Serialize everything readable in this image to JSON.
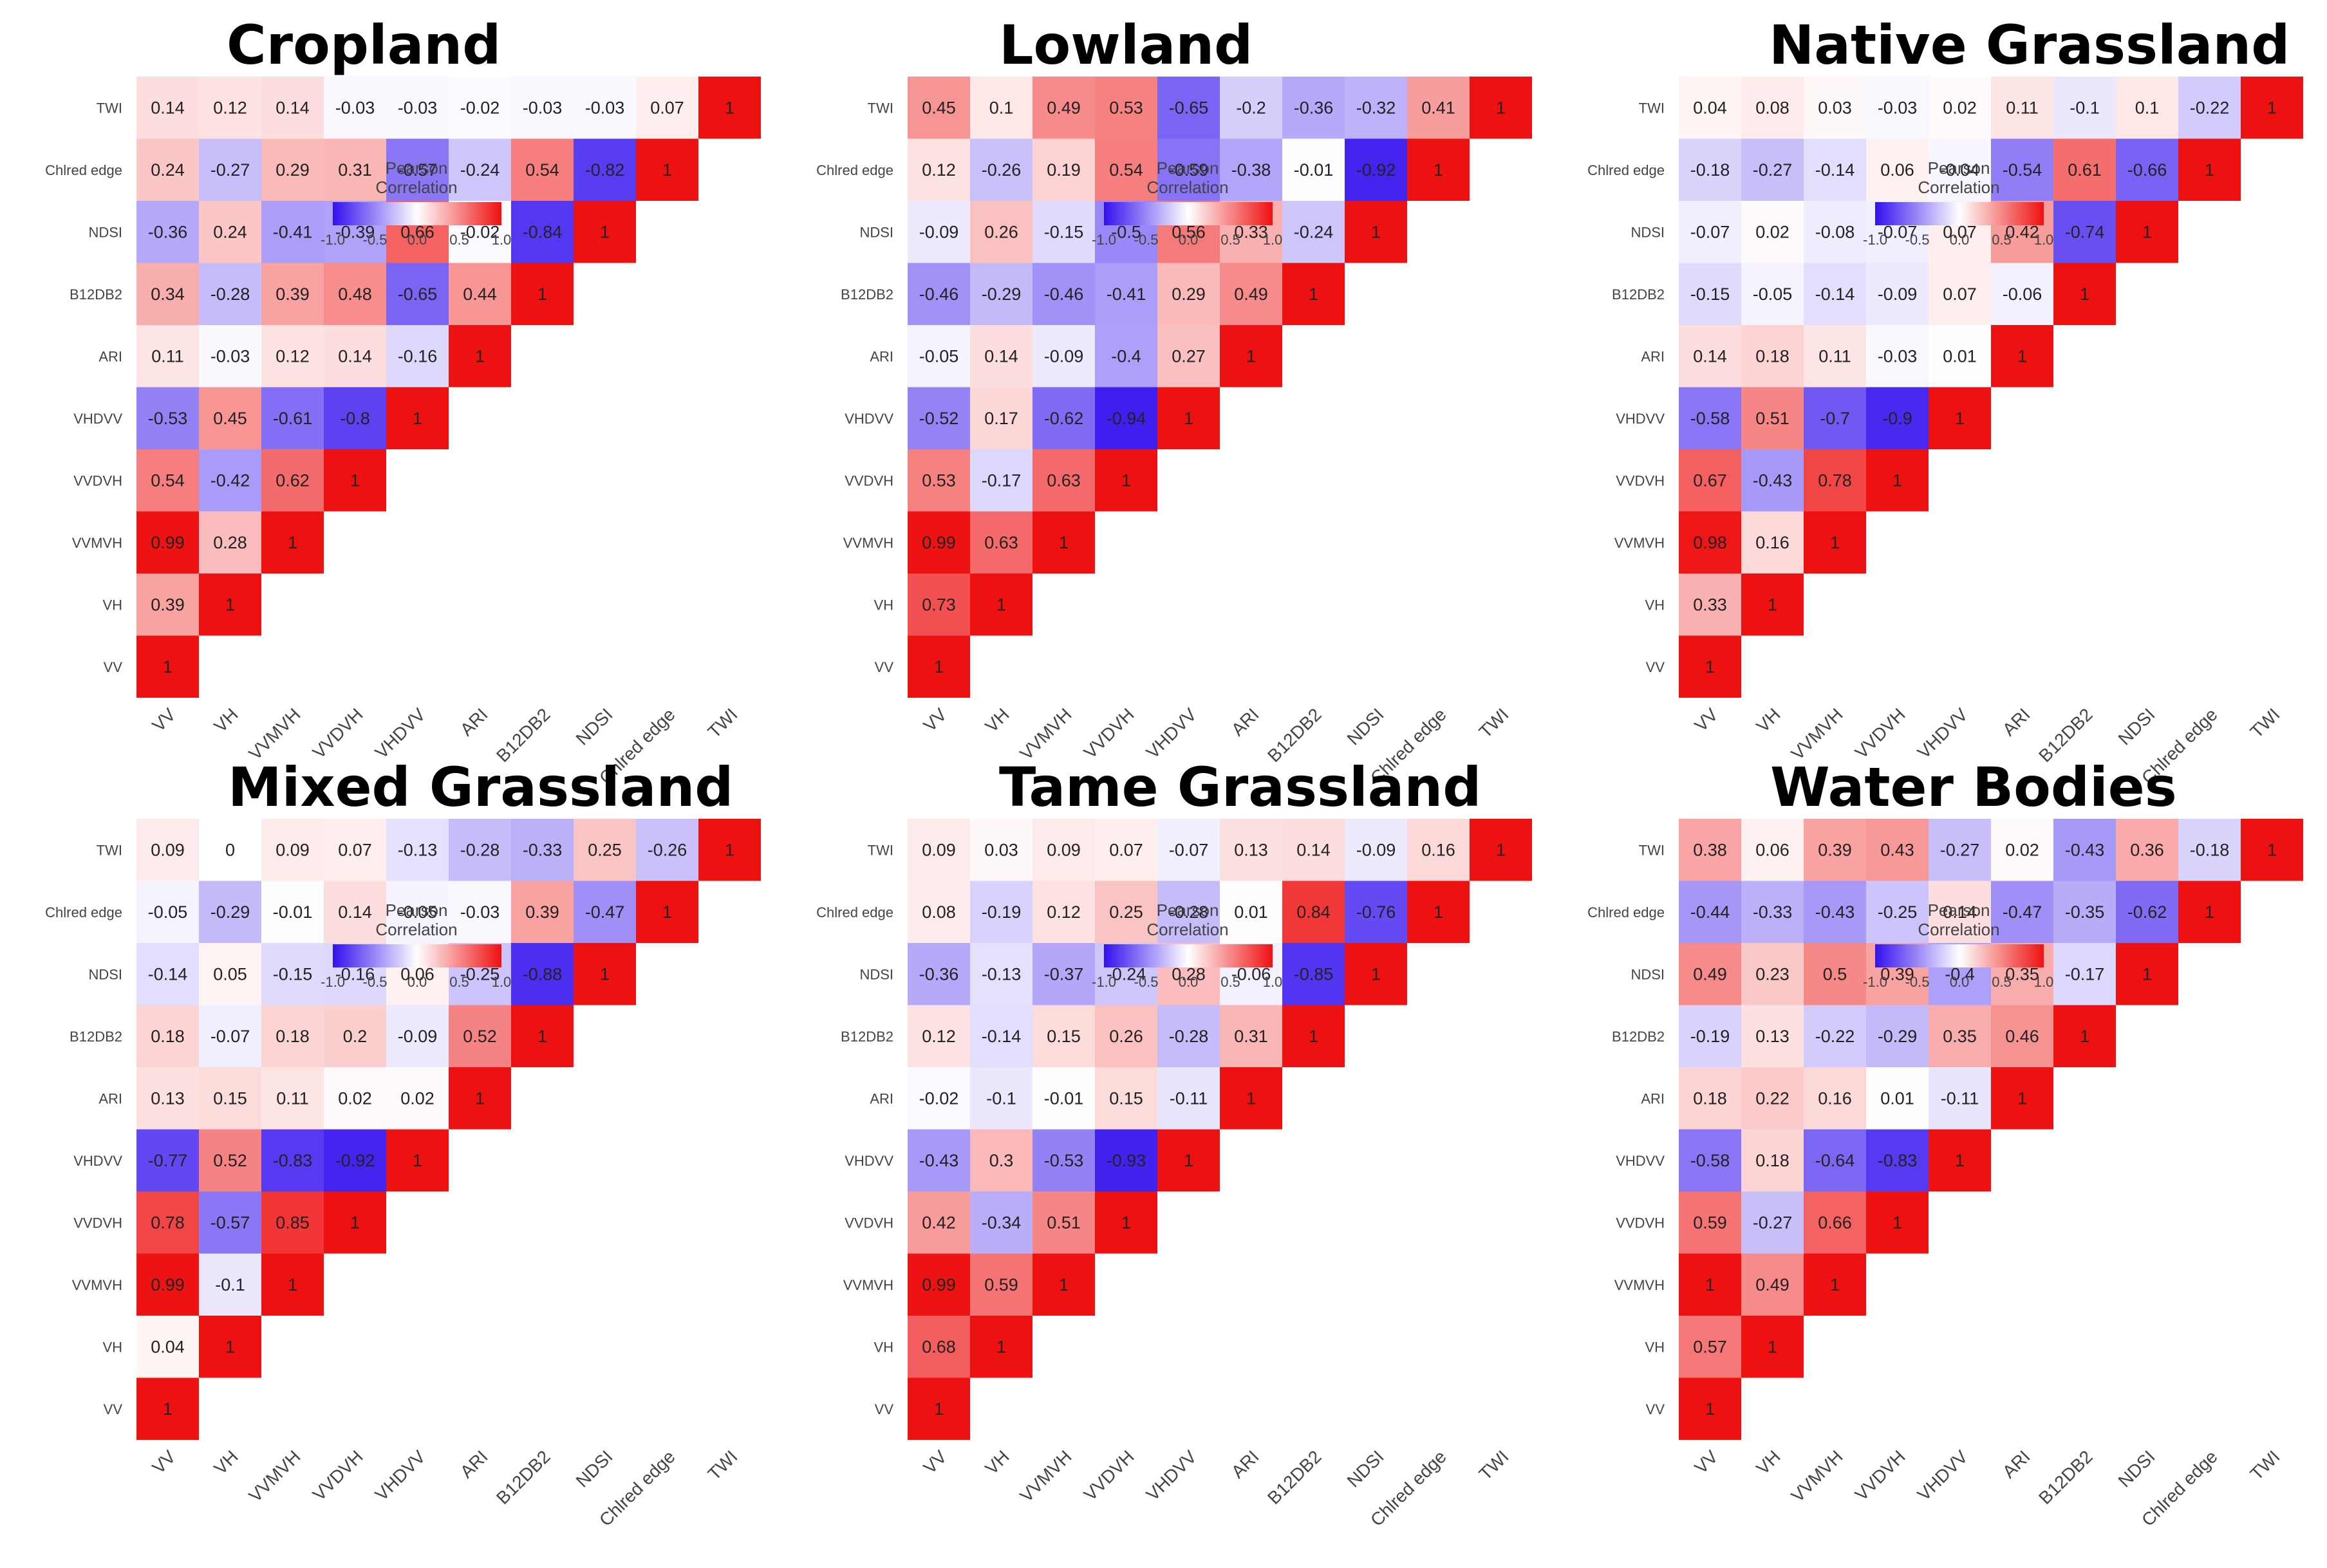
{
  "chart_data": [
    {
      "type": "heatmap",
      "title": "Cropland",
      "variables": [
        "VV",
        "VH",
        "VVMVH",
        "VVDVH",
        "VHDVV",
        "ARI",
        "B12DB2",
        "NDSI",
        "Chlred edge",
        "TWI"
      ],
      "values": [
        [
          1
        ],
        [
          0.39,
          1
        ],
        [
          0.99,
          0.28,
          1
        ],
        [
          0.54,
          -0.42,
          0.62,
          1
        ],
        [
          -0.53,
          0.45,
          -0.61,
          -0.8,
          1
        ],
        [
          0.11,
          -0.03,
          0.12,
          0.14,
          -0.16,
          1
        ],
        [
          0.34,
          -0.28,
          0.39,
          0.48,
          -0.65,
          0.44,
          1
        ],
        [
          -0.36,
          0.24,
          -0.41,
          -0.39,
          0.66,
          -0.02,
          -0.84,
          1
        ],
        [
          0.24,
          -0.27,
          0.29,
          0.31,
          -0.57,
          -0.24,
          0.54,
          -0.82,
          1
        ],
        [
          0.14,
          0.12,
          0.14,
          -0.03,
          -0.03,
          -0.02,
          -0.03,
          -0.03,
          0.07,
          1
        ]
      ],
      "legend_title": "Pearson Correlation",
      "legend_ticks": [
        "-1.0",
        "-0.5",
        "0.0",
        "0.5",
        "1.0"
      ],
      "range": [
        -1,
        1
      ]
    },
    {
      "type": "heatmap",
      "title": "Lowland",
      "variables": [
        "VV",
        "VH",
        "VVMVH",
        "VVDVH",
        "VHDVV",
        "ARI",
        "B12DB2",
        "NDSI",
        "Chlred edge",
        "TWI"
      ],
      "values": [
        [
          1
        ],
        [
          0.73,
          1
        ],
        [
          0.99,
          0.63,
          1
        ],
        [
          0.53,
          -0.17,
          0.63,
          1
        ],
        [
          -0.52,
          0.17,
          -0.62,
          -0.94,
          1
        ],
        [
          -0.05,
          0.14,
          -0.09,
          -0.4,
          0.27,
          1
        ],
        [
          -0.46,
          -0.29,
          -0.46,
          -0.41,
          0.29,
          0.49,
          1
        ],
        [
          -0.09,
          0.26,
          -0.15,
          -0.5,
          0.56,
          0.33,
          -0.24,
          1
        ],
        [
          0.12,
          -0.26,
          0.19,
          0.54,
          -0.59,
          -0.38,
          -0.01,
          -0.92,
          1
        ],
        [
          0.45,
          0.1,
          0.49,
          0.53,
          -0.65,
          -0.2,
          -0.36,
          -0.32,
          0.41,
          1
        ]
      ],
      "legend_title": "Pearson Correlation",
      "legend_ticks": [
        "-1.0",
        "-0.5",
        "0.0",
        "0.5",
        "1.0"
      ],
      "range": [
        -1,
        1
      ]
    },
    {
      "type": "heatmap",
      "title": "Native Grassland",
      "variables": [
        "VV",
        "VH",
        "VVMVH",
        "VVDVH",
        "VHDVV",
        "ARI",
        "B12DB2",
        "NDSI",
        "Chlred edge",
        "TWI"
      ],
      "values": [
        [
          1
        ],
        [
          0.33,
          1
        ],
        [
          0.98,
          0.16,
          1
        ],
        [
          0.67,
          -0.43,
          0.78,
          1
        ],
        [
          -0.58,
          0.51,
          -0.7,
          -0.9,
          1
        ],
        [
          0.14,
          0.18,
          0.11,
          -0.03,
          0.01,
          1
        ],
        [
          -0.15,
          -0.05,
          -0.14,
          -0.09,
          0.07,
          -0.06,
          1
        ],
        [
          -0.07,
          0.02,
          -0.08,
          -0.07,
          0.07,
          0.42,
          -0.74,
          1
        ],
        [
          -0.18,
          -0.27,
          -0.14,
          0.06,
          -0.04,
          -0.54,
          0.61,
          -0.66,
          1
        ],
        [
          0.04,
          0.08,
          0.03,
          -0.03,
          0.02,
          0.11,
          -0.1,
          0.1,
          -0.22,
          1
        ]
      ],
      "legend_title": "Pearson Correlation",
      "legend_ticks": [
        "-1.0",
        "-0.5",
        "0.0",
        "0.5",
        "1.0"
      ],
      "range": [
        -1,
        1
      ]
    },
    {
      "type": "heatmap",
      "title": "Mixed Grassland",
      "variables": [
        "VV",
        "VH",
        "VVMVH",
        "VVDVH",
        "VHDVV",
        "ARI",
        "B12DB2",
        "NDSI",
        "Chlred edge",
        "TWI"
      ],
      "values": [
        [
          1
        ],
        [
          0.04,
          1
        ],
        [
          0.99,
          -0.1,
          1
        ],
        [
          0.78,
          -0.57,
          0.85,
          1
        ],
        [
          -0.77,
          0.52,
          -0.83,
          -0.92,
          1
        ],
        [
          0.13,
          0.15,
          0.11,
          0.02,
          0.02,
          1
        ],
        [
          0.18,
          -0.07,
          0.18,
          0.2,
          -0.09,
          0.52,
          1
        ],
        [
          -0.14,
          0.05,
          -0.15,
          -0.16,
          0.06,
          -0.25,
          -0.88,
          1
        ],
        [
          -0.05,
          -0.29,
          -0.01,
          0.14,
          -0.05,
          -0.03,
          0.39,
          -0.47,
          1
        ],
        [
          0.09,
          0,
          0.09,
          0.07,
          -0.13,
          -0.28,
          -0.33,
          0.25,
          -0.26,
          1
        ]
      ],
      "legend_title": "Pearson Correlation",
      "legend_ticks": [
        "-1.0",
        "-0.5",
        "0.0",
        "0.5",
        "1.0"
      ],
      "range": [
        -1,
        1
      ]
    },
    {
      "type": "heatmap",
      "title": "Tame Grassland",
      "variables": [
        "VV",
        "VH",
        "VVMVH",
        "VVDVH",
        "VHDVV",
        "ARI",
        "B12DB2",
        "NDSI",
        "Chlred edge",
        "TWI"
      ],
      "values": [
        [
          1
        ],
        [
          0.68,
          1
        ],
        [
          0.99,
          0.59,
          1
        ],
        [
          0.42,
          -0.34,
          0.51,
          1
        ],
        [
          -0.43,
          0.3,
          -0.53,
          -0.93,
          1
        ],
        [
          -0.02,
          -0.1,
          -0.01,
          0.15,
          -0.11,
          1
        ],
        [
          0.12,
          -0.14,
          0.15,
          0.26,
          -0.28,
          0.31,
          1
        ],
        [
          -0.36,
          -0.13,
          -0.37,
          -0.24,
          0.28,
          -0.06,
          -0.85,
          1
        ],
        [
          0.08,
          -0.19,
          0.12,
          0.25,
          -0.28,
          0.01,
          0.84,
          -0.76,
          1
        ],
        [
          0.09,
          0.03,
          0.09,
          0.07,
          -0.07,
          0.13,
          0.14,
          -0.09,
          0.16,
          1
        ]
      ],
      "legend_title": "Pearson Correlation",
      "legend_ticks": [
        "-1.0",
        "-0.5",
        "0.0",
        "0.5",
        "1.0"
      ],
      "range": [
        -1,
        1
      ]
    },
    {
      "type": "heatmap",
      "title": "Water Bodies",
      "variables": [
        "VV",
        "VH",
        "VVMVH",
        "VVDVH",
        "VHDVV",
        "ARI",
        "B12DB2",
        "NDSI",
        "Chlred edge",
        "TWI"
      ],
      "values": [
        [
          1
        ],
        [
          0.57,
          1
        ],
        [
          1,
          0.49,
          1
        ],
        [
          0.59,
          -0.27,
          0.66,
          1
        ],
        [
          -0.58,
          0.18,
          -0.64,
          -0.83,
          1
        ],
        [
          0.18,
          0.22,
          0.16,
          0.01,
          -0.11,
          1
        ],
        [
          -0.19,
          0.13,
          -0.22,
          -0.29,
          0.35,
          0.46,
          1
        ],
        [
          0.49,
          0.23,
          0.5,
          0.39,
          -0.4,
          0.35,
          -0.17,
          1
        ],
        [
          -0.44,
          -0.33,
          -0.43,
          -0.25,
          0.14,
          -0.47,
          -0.35,
          -0.62,
          1
        ],
        [
          0.38,
          0.06,
          0.39,
          0.43,
          -0.27,
          0.02,
          -0.43,
          0.36,
          -0.18,
          1
        ]
      ],
      "legend_title": "Pearson Correlation",
      "legend_ticks": [
        "-1.0",
        "-0.5",
        "0.0",
        "0.5",
        "1.0"
      ],
      "range": [
        -1,
        1
      ]
    }
  ]
}
